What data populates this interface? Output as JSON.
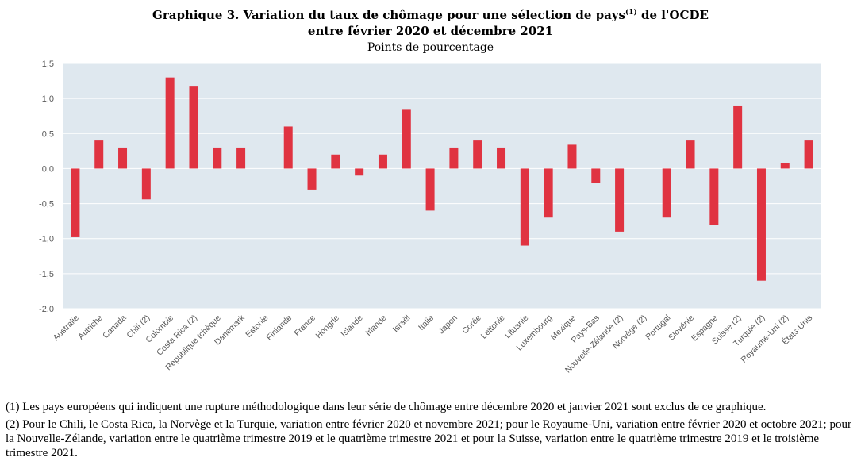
{
  "title": {
    "line1_before_sup": "Graphique 3. Variation du taux de chômage pour une sélection de pays",
    "sup": "(1)",
    "line1_after_sup": " de l'OCDE",
    "line2": "entre février 2020 et décembre 2021"
  },
  "subtitle": "Points de pourcentage",
  "colors": {
    "bar": "#e03341",
    "plot_bg": "#dfe8ef",
    "gridline": "#ffffff",
    "axis_text": "#595959"
  },
  "chart_data": {
    "type": "bar",
    "title": "Graphique 3. Variation du taux de chômage pour une sélection de pays(1) de l'OCDE entre février 2020 et décembre 2021",
    "ylabel": "Points de pourcentage",
    "xlabel": "",
    "ylim": [
      -2.0,
      1.5
    ],
    "yticks": [
      1.5,
      1.0,
      0.5,
      0.0,
      -0.5,
      -1.0,
      -1.5,
      -2.0
    ],
    "ytick_labels": [
      "1,5",
      "1,0",
      "0,5",
      "0,0",
      "-0,5",
      "-1,0",
      "-1,5",
      "-2,0"
    ],
    "grid": true,
    "legend": "none",
    "categories": [
      "Australie",
      "Autriche",
      "Canada",
      "Chili (2)",
      "Colombie",
      "Costa Rica (2)",
      "République tchèque",
      "Danemark",
      "Estonie",
      "Finlande",
      "France",
      "Hongrie",
      "Islande",
      "Irlande",
      "Israël",
      "Italie",
      "Japon",
      "Corée",
      "Lettonie",
      "Lituanie",
      "Luxembourg",
      "Mexique",
      "Pays-Bas",
      "Nouvelle-Zélande (2)",
      "Norvège (2)",
      "Portugal",
      "Slovénie",
      "Espagne",
      "Suisse (2)",
      "Turquie (2)",
      "Royaume-Uni (2)",
      "États-Unis"
    ],
    "values": [
      -0.98,
      0.4,
      0.3,
      -0.44,
      1.3,
      1.17,
      0.3,
      0.3,
      0.0,
      0.6,
      -0.3,
      0.2,
      -0.1,
      0.2,
      0.85,
      -0.6,
      0.3,
      0.4,
      0.3,
      -1.1,
      -0.7,
      0.34,
      -0.2,
      -0.9,
      0.0,
      -0.7,
      0.4,
      -0.8,
      0.9,
      -1.6,
      0.08,
      0.4
    ]
  },
  "notes": [
    "(1) Les pays européens qui indiquent une rupture méthodologique dans leur série de chômage entre décembre 2020 et janvier 2021 sont exclus de ce graphique.",
    "(2) Pour le Chili, le Costa Rica, la Norvège et la Turquie, variation entre février 2020 et novembre 2021; pour le Royaume-Uni, variation entre février 2020 et octobre 2021; pour la Nouvelle-Zélande, variation entre le quatrième trimestre 2019 et le quatrième trimestre 2021 et pour la Suisse, variation entre le quatrième trimestre 2019 et le troisième trimestre 2021."
  ]
}
